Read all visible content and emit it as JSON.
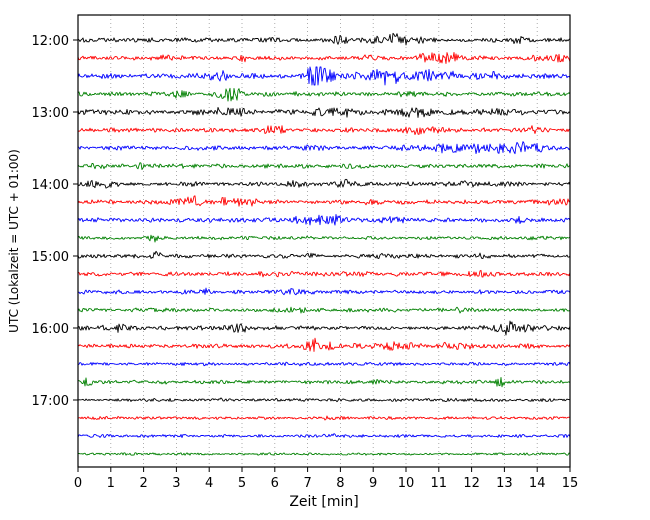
{
  "chart_data": {
    "type": "line",
    "subtype": "helicorder-seismogram",
    "title": "",
    "xlabel": "Zeit  [min]",
    "ylabel": "UTC (Lokalzeit = UTC + 01:00)",
    "xlim": [
      0,
      15
    ],
    "minutes_per_line": 15,
    "x_ticks": [
      0,
      1,
      2,
      3,
      4,
      5,
      6,
      7,
      8,
      9,
      10,
      11,
      12,
      13,
      14,
      15
    ],
    "y_ticks": [
      {
        "label": "12:00",
        "trace": 0
      },
      {
        "label": "13:00",
        "trace": 4
      },
      {
        "label": "14:00",
        "trace": 8
      },
      {
        "label": "15:00",
        "trace": 12
      },
      {
        "label": "16:00",
        "trace": 16
      },
      {
        "label": "17:00",
        "trace": 20
      }
    ],
    "grid": "vertical dotted lines at every minute",
    "legend": "none",
    "colors": {
      "black": "#000000",
      "red": "#ff0000",
      "blue": "#0000ff",
      "green": "#008000"
    },
    "color_cycle": [
      "black",
      "red",
      "blue",
      "green"
    ],
    "traces": [
      {
        "time": "12:00",
        "color": "black",
        "noise": 1.6,
        "bursts": [
          [
            6.0,
            0.2,
            0.8
          ],
          [
            8.1,
            0.25,
            1.2
          ],
          [
            9.7,
            0.45,
            2.8
          ],
          [
            13.6,
            0.3,
            1.2
          ]
        ]
      },
      {
        "time": "12:15",
        "color": "red",
        "noise": 1.6,
        "bursts": [
          [
            2.6,
            0.2,
            1.0
          ],
          [
            5.0,
            0.3,
            0.8
          ],
          [
            8.9,
            0.2,
            0.8
          ],
          [
            11.0,
            0.5,
            2.2
          ],
          [
            14.6,
            0.4,
            2.0
          ]
        ]
      },
      {
        "time": "12:30",
        "color": "blue",
        "noise": 1.9,
        "bursts": [
          [
            4.3,
            0.3,
            1.2
          ],
          [
            7.35,
            0.3,
            4.5
          ],
          [
            9.3,
            0.5,
            2.5
          ],
          [
            10.9,
            0.4,
            1.8
          ],
          [
            12.6,
            0.4,
            1.2
          ]
        ]
      },
      {
        "time": "12:45",
        "color": "green",
        "noise": 1.7,
        "bursts": [
          [
            3.2,
            0.25,
            1.2
          ],
          [
            4.65,
            0.3,
            2.2
          ],
          [
            10.3,
            0.3,
            0.8
          ]
        ]
      },
      {
        "time": "13:00",
        "color": "black",
        "noise": 2.0,
        "bursts": [
          [
            4.6,
            0.4,
            1.0
          ],
          [
            7.6,
            0.3,
            1.3
          ],
          [
            8.3,
            0.2,
            1.0
          ],
          [
            10.3,
            0.4,
            1.2
          ],
          [
            13.0,
            0.3,
            0.8
          ]
        ]
      },
      {
        "time": "13:15",
        "color": "red",
        "noise": 1.7,
        "bursts": [
          [
            5.9,
            0.3,
            1.6
          ],
          [
            10.3,
            0.4,
            1.4
          ],
          [
            13.8,
            0.3,
            0.9
          ]
        ]
      },
      {
        "time": "13:30",
        "color": "blue",
        "noise": 1.7,
        "bursts": [
          [
            7.0,
            0.3,
            0.8
          ],
          [
            11.5,
            0.8,
            1.6
          ],
          [
            13.4,
            0.6,
            2.2
          ]
        ]
      },
      {
        "time": "13:45",
        "color": "green",
        "noise": 1.6,
        "bursts": [
          [
            0.5,
            0.2,
            1.0
          ],
          [
            2.0,
            0.2,
            0.6
          ],
          [
            8.3,
            0.25,
            0.9
          ]
        ]
      },
      {
        "time": "14:00",
        "color": "black",
        "noise": 1.7,
        "bursts": [
          [
            0.7,
            0.25,
            1.6
          ],
          [
            6.8,
            0.3,
            1.2
          ],
          [
            8.1,
            0.25,
            1.0
          ],
          [
            12.0,
            0.2,
            0.6
          ]
        ]
      },
      {
        "time": "14:15",
        "color": "red",
        "noise": 1.7,
        "bursts": [
          [
            3.4,
            0.3,
            1.8
          ],
          [
            4.8,
            0.35,
            2.0
          ],
          [
            9.0,
            0.2,
            0.6
          ],
          [
            14.8,
            0.3,
            1.5
          ]
        ]
      },
      {
        "time": "14:30",
        "color": "blue",
        "noise": 1.6,
        "bursts": [
          [
            6.9,
            0.3,
            1.6
          ],
          [
            7.7,
            0.35,
            2.0
          ],
          [
            9.6,
            0.3,
            1.0
          ],
          [
            13.4,
            0.25,
            0.7
          ]
        ]
      },
      {
        "time": "14:45",
        "color": "green",
        "noise": 1.3,
        "bursts": [
          [
            2.3,
            0.12,
            1.8
          ],
          [
            6.9,
            0.2,
            0.6
          ]
        ]
      },
      {
        "time": "15:00",
        "color": "black",
        "noise": 1.5,
        "bursts": [
          [
            2.3,
            0.15,
            1.5
          ],
          [
            7.0,
            0.2,
            1.0
          ],
          [
            9.3,
            0.25,
            1.2
          ],
          [
            12.1,
            0.2,
            0.7
          ]
        ]
      },
      {
        "time": "15:15",
        "color": "red",
        "noise": 1.7,
        "bursts": [
          [
            6.0,
            0.3,
            0.5
          ],
          [
            12.4,
            0.3,
            0.8
          ]
        ]
      },
      {
        "time": "15:30",
        "color": "blue",
        "noise": 1.5,
        "bursts": [
          [
            1.0,
            0.2,
            0.6
          ],
          [
            3.9,
            0.25,
            1.0
          ],
          [
            6.4,
            0.25,
            0.9
          ]
        ]
      },
      {
        "time": "15:45",
        "color": "green",
        "noise": 1.5,
        "bursts": [
          [
            6.6,
            0.3,
            0.9
          ],
          [
            11.8,
            0.25,
            0.7
          ]
        ]
      },
      {
        "time": "16:00",
        "color": "black",
        "noise": 1.7,
        "bursts": [
          [
            1.2,
            0.3,
            1.5
          ],
          [
            5.0,
            0.4,
            1.0
          ],
          [
            13.2,
            0.45,
            2.2
          ]
        ]
      },
      {
        "time": "16:15",
        "color": "red",
        "noise": 1.7,
        "bursts": [
          [
            7.3,
            0.4,
            2.2
          ],
          [
            9.7,
            0.35,
            1.6
          ],
          [
            11.5,
            0.3,
            1.2
          ]
        ]
      },
      {
        "time": "16:30",
        "color": "blue",
        "noise": 1.3,
        "bursts": [
          [
            6.5,
            0.2,
            0.5
          ]
        ]
      },
      {
        "time": "16:45",
        "color": "green",
        "noise": 1.4,
        "bursts": [
          [
            0.3,
            0.15,
            1.2
          ],
          [
            9.0,
            0.2,
            0.5
          ],
          [
            12.9,
            0.15,
            1.6
          ]
        ]
      },
      {
        "time": "17:00",
        "color": "black",
        "noise": 1.2,
        "bursts": [
          [
            2.2,
            0.15,
            0.6
          ],
          [
            4.4,
            0.2,
            0.8
          ]
        ]
      },
      {
        "time": "17:15",
        "color": "red",
        "noise": 1.2,
        "bursts": [
          [
            8.0,
            0.3,
            0.5
          ]
        ]
      },
      {
        "time": "17:30",
        "color": "blue",
        "noise": 1.1,
        "bursts": [
          [
            7.6,
            0.3,
            0.8
          ]
        ]
      },
      {
        "time": "17:45",
        "color": "green",
        "noise": 0.9,
        "bursts": []
      }
    ]
  }
}
